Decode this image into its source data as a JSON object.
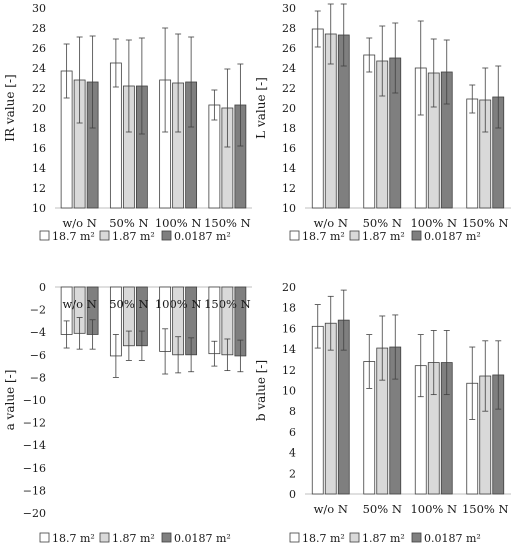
{
  "legend_names": [
    "18.7 m²",
    "1.87 m²",
    "0.0187 m²"
  ],
  "legend_colors": [
    "#ffffff",
    "#d9d9d9",
    "#7f7f7f"
  ],
  "chart_data": [
    {
      "type": "bar",
      "ylabel": "IR value [-]",
      "ylim": [
        10,
        30
      ],
      "ytick_step": 2,
      "categories": [
        "w/o N",
        "50% N",
        "100% N",
        "150% N"
      ],
      "series": [
        {
          "name": "18.7 m²",
          "color": "#ffffff",
          "values": [
            23.7,
            24.5,
            22.8,
            20.3
          ],
          "errors": [
            2.7,
            2.4,
            5.2,
            1.5
          ]
        },
        {
          "name": "1.87 m²",
          "color": "#d9d9d9",
          "values": [
            22.8,
            22.2,
            22.5,
            20.0
          ],
          "errors": [
            4.3,
            4.6,
            4.9,
            3.9
          ]
        },
        {
          "name": "0.0187 m²",
          "color": "#7f7f7f",
          "values": [
            22.6,
            22.2,
            22.6,
            20.3
          ],
          "errors": [
            4.6,
            4.8,
            4.5,
            4.1
          ]
        }
      ]
    },
    {
      "type": "bar",
      "ylabel": "L value [-]",
      "ylim": [
        10,
        30
      ],
      "ytick_step": 2,
      "categories": [
        "w/o N",
        "50% N",
        "100% N",
        "150% N"
      ],
      "series": [
        {
          "name": "18.7 m²",
          "color": "#ffffff",
          "values": [
            27.9,
            25.3,
            24.0,
            20.9
          ],
          "errors": [
            1.8,
            1.7,
            4.7,
            1.4
          ]
        },
        {
          "name": "1.87 m²",
          "color": "#d9d9d9",
          "values": [
            27.4,
            24.7,
            23.5,
            20.8
          ],
          "errors": [
            3.0,
            3.5,
            3.4,
            3.2
          ]
        },
        {
          "name": "0.0187 m²",
          "color": "#7f7f7f",
          "values": [
            27.3,
            25.0,
            23.6,
            21.1
          ],
          "errors": [
            3.1,
            3.5,
            3.2,
            3.1
          ]
        }
      ]
    },
    {
      "type": "bar",
      "ylabel": "a value [-]",
      "ylim": [
        -20,
        0
      ],
      "ytick_step": 2,
      "categories": [
        "w/o N",
        "50% N",
        "100% N",
        "150% N"
      ],
      "series": [
        {
          "name": "18.7 m²",
          "color": "#ffffff",
          "values": [
            -4.2,
            -6.1,
            -5.7,
            -5.9
          ],
          "errors": [
            1.2,
            1.9,
            2.0,
            1.1
          ]
        },
        {
          "name": "1.87 m²",
          "color": "#d9d9d9",
          "values": [
            -4.1,
            -5.2,
            -6.0,
            -6.0
          ],
          "errors": [
            1.4,
            1.3,
            1.6,
            1.4
          ]
        },
        {
          "name": "0.0187 m²",
          "color": "#7f7f7f",
          "values": [
            -4.2,
            -5.2,
            -6.0,
            -6.1
          ],
          "errors": [
            1.3,
            1.3,
            1.5,
            1.4
          ]
        }
      ]
    },
    {
      "type": "bar",
      "ylabel": "b value [-]",
      "ylim": [
        0,
        20
      ],
      "ytick_step": 2,
      "categories": [
        "w/o N",
        "50% N",
        "100% N",
        "150% N"
      ],
      "series": [
        {
          "name": "18.7 m²",
          "color": "#ffffff",
          "values": [
            16.2,
            12.8,
            12.4,
            10.7
          ],
          "errors": [
            2.1,
            2.6,
            3.0,
            3.5
          ]
        },
        {
          "name": "1.87 m²",
          "color": "#d9d9d9",
          "values": [
            16.5,
            14.1,
            12.7,
            11.4
          ],
          "errors": [
            2.6,
            3.1,
            3.1,
            3.4
          ]
        },
        {
          "name": "0.0187 m²",
          "color": "#7f7f7f",
          "values": [
            16.8,
            14.2,
            12.7,
            11.5
          ],
          "errors": [
            2.9,
            3.1,
            3.1,
            3.3
          ]
        }
      ]
    }
  ]
}
